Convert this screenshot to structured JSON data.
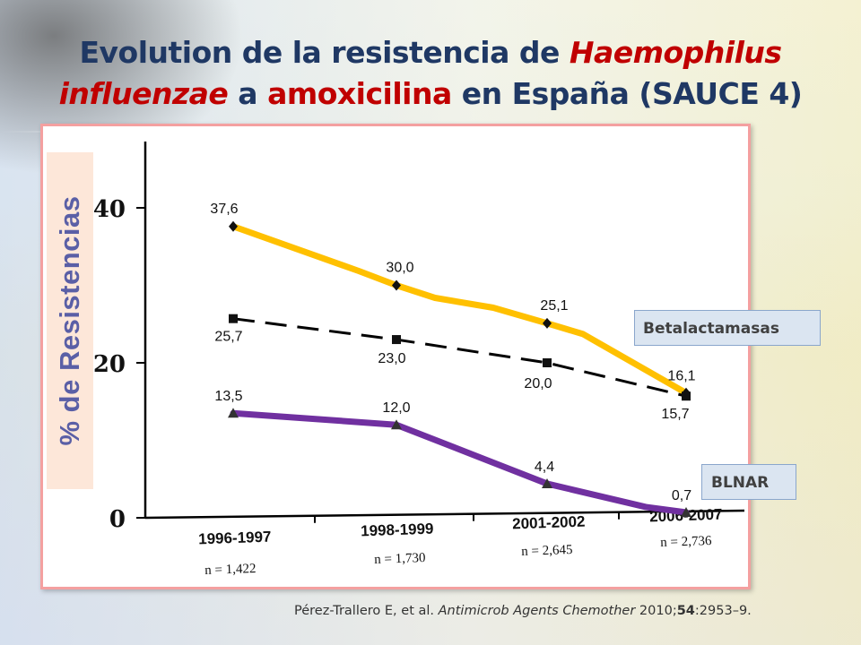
{
  "title": {
    "part1": "Evolution de la resistencia de ",
    "part2": "Haemophilus",
    "part3": "influenzae",
    "part4": " a ",
    "part5": "amoxicilina",
    "part6": " en España (SAUCE 4)"
  },
  "legend": {
    "betalactamasas": "Betalactamasas",
    "blnar": "BLNAR"
  },
  "citation": {
    "authors": "Pérez-Trallero E, et al. ",
    "journal": "Antimicrob Agents Chemother",
    "year": " 2010;",
    "volume": "54",
    "pages": ":2953–9."
  },
  "colors": {
    "total": "#ffc000",
    "betalactamasas": "#000000",
    "blnar": "#7030a0",
    "title_dark": "#1f3864",
    "title_red": "#c00000"
  },
  "chart_data": {
    "type": "line",
    "ylabel": "% de Resistencias",
    "xlabel": "",
    "ylim": [
      0,
      40
    ],
    "yticks": [
      0,
      20,
      40
    ],
    "categories": [
      "1996-1997",
      "1998-1999",
      "2001-2002",
      "2006-2007"
    ],
    "sample_sizes": [
      "n = 1,422",
      "n = 1,730",
      "n = 2,645",
      "n = 2,736"
    ],
    "series": [
      {
        "key": "total",
        "values": [
          37.6,
          30.0,
          25.1,
          16.1
        ],
        "labels": [
          "37,6",
          "30,0",
          "25,1",
          "16,1"
        ],
        "marker": "diamond"
      },
      {
        "name": "Betalactamasas",
        "key": "betalactamasas",
        "values": [
          25.7,
          23.0,
          20.0,
          15.7
        ],
        "labels": [
          "25,7",
          "23,0",
          "20,0",
          "15,7"
        ],
        "marker": "square",
        "dashed": true
      },
      {
        "name": "BLNAR",
        "key": "blnar",
        "values": [
          13.5,
          12.0,
          4.4,
          0.7
        ],
        "labels": [
          "13,5",
          "12,0",
          "4,4",
          "0,7"
        ],
        "marker": "triangle"
      }
    ]
  }
}
